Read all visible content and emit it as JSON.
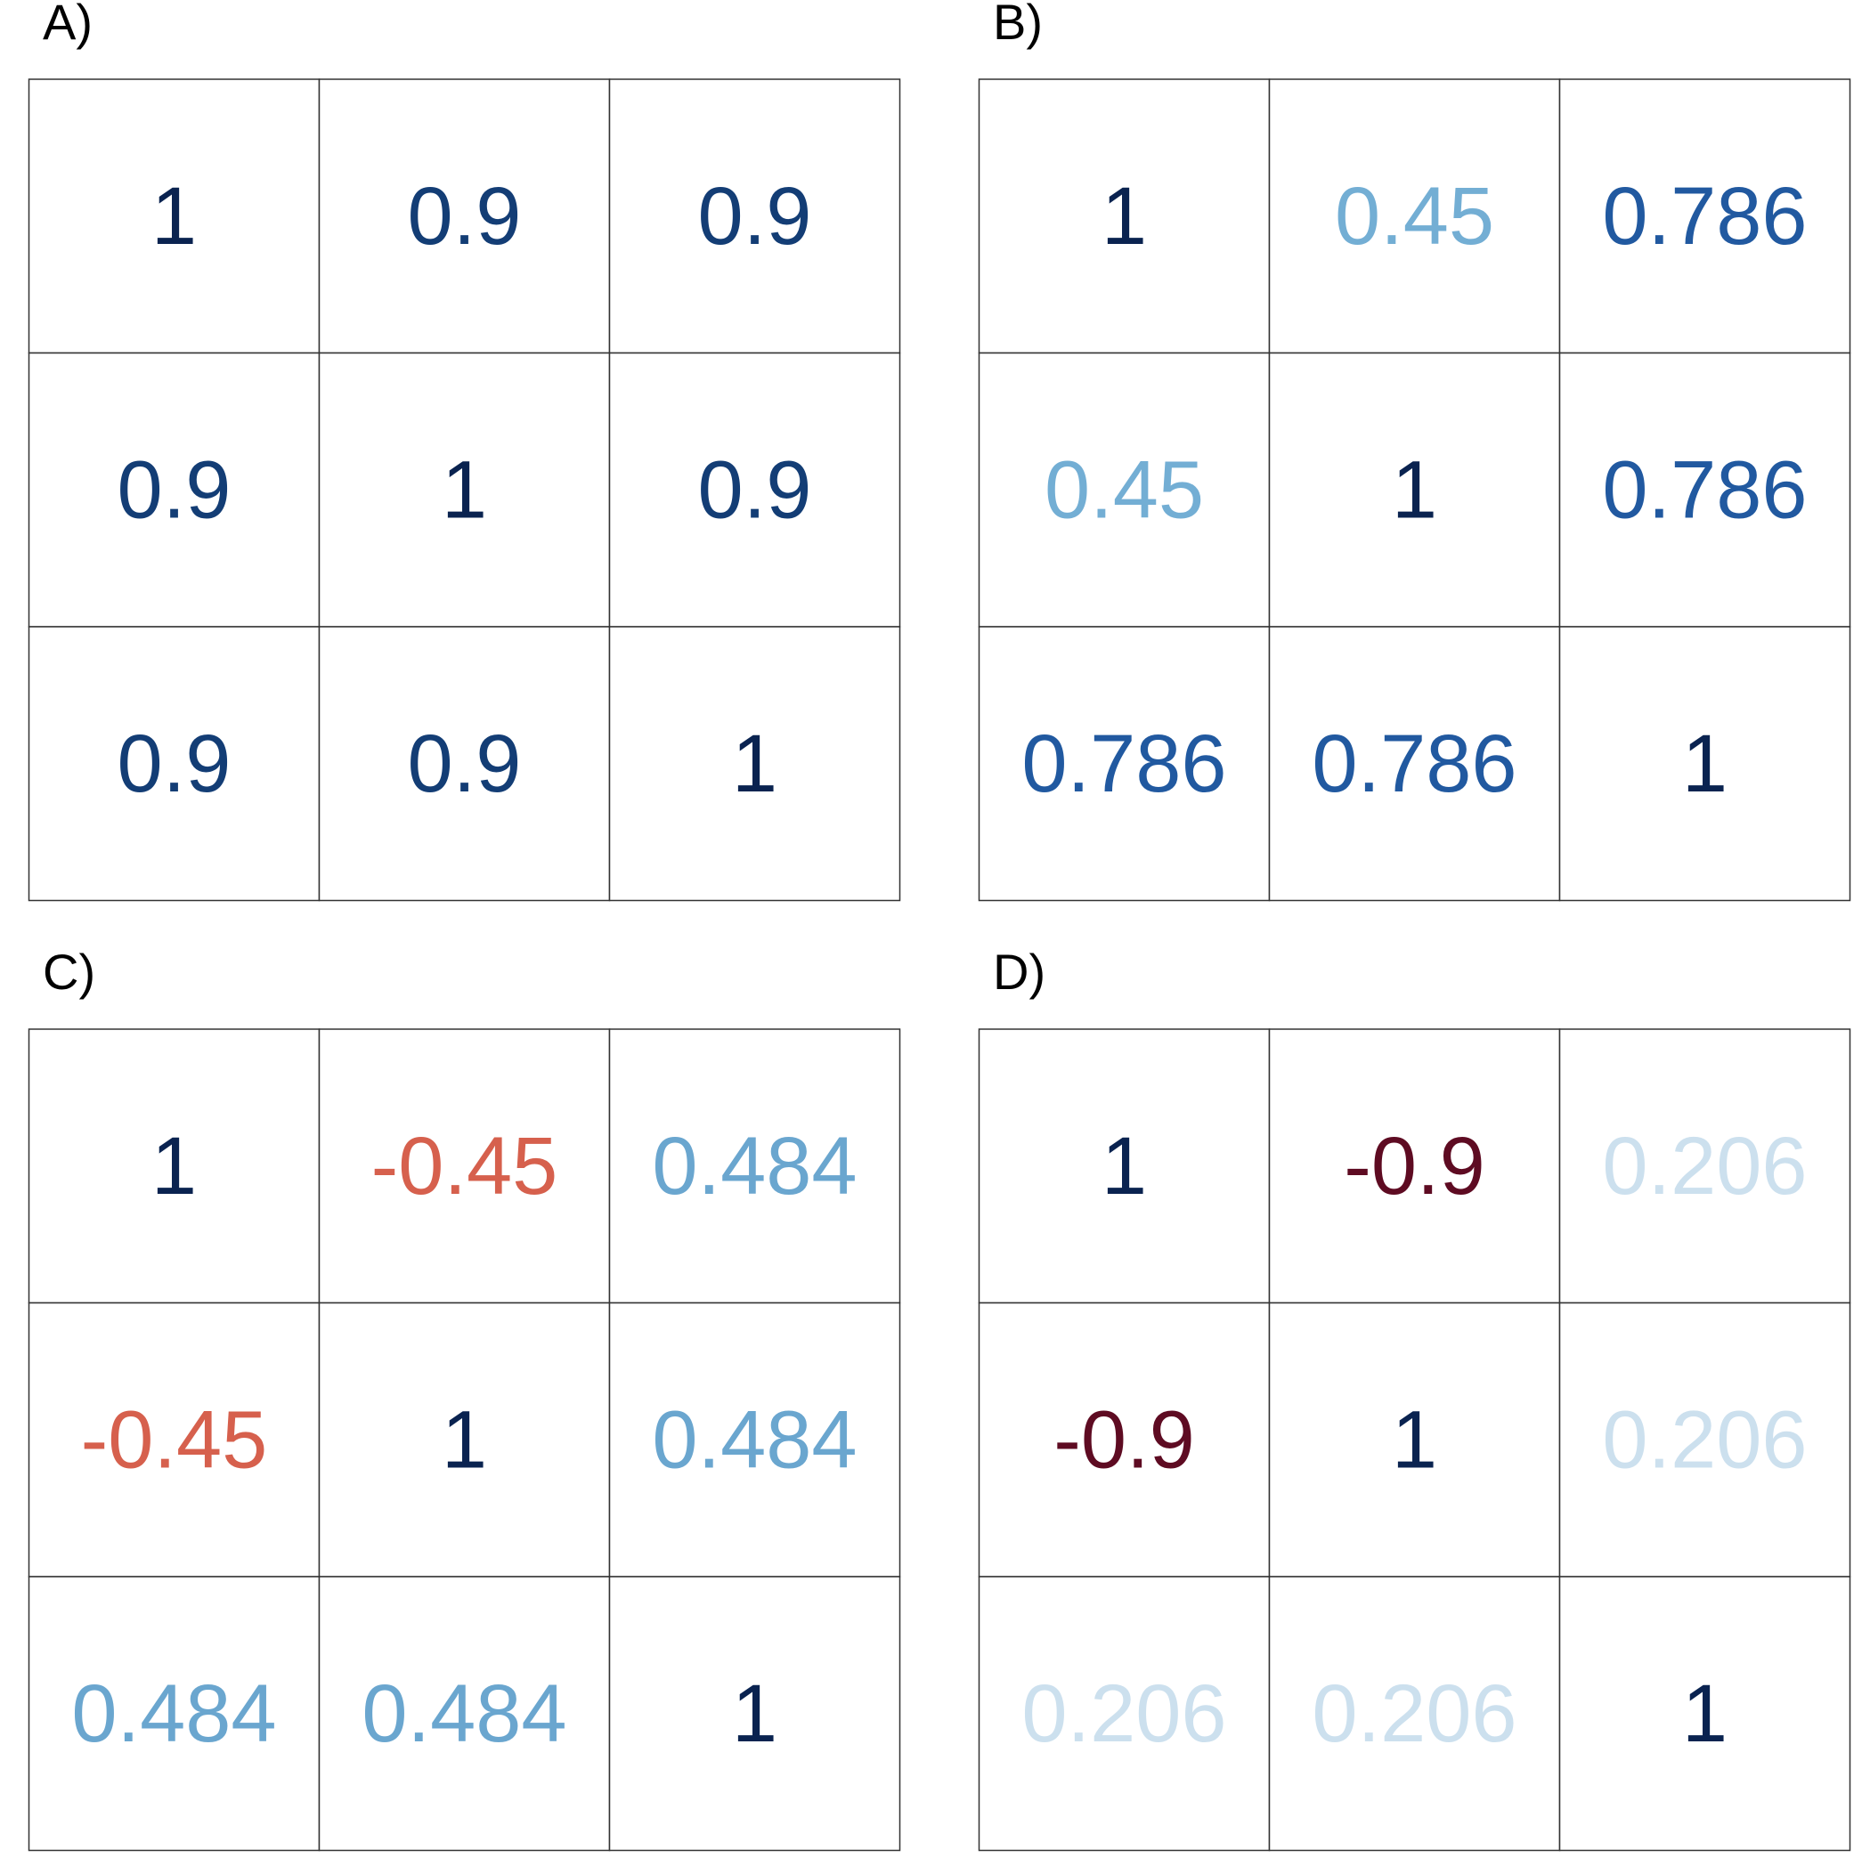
{
  "chart_data": [
    {
      "type": "table",
      "panel_label": "A)",
      "matrix": [
        [
          1,
          0.9,
          0.9
        ],
        [
          0.9,
          1,
          0.9
        ],
        [
          0.9,
          0.9,
          1
        ]
      ],
      "cells": [
        [
          "1",
          "0.9",
          "0.9"
        ],
        [
          "0.9",
          "1",
          "0.9"
        ],
        [
          "0.9",
          "0.9",
          "1"
        ]
      ]
    },
    {
      "type": "table",
      "panel_label": "B)",
      "matrix": [
        [
          1,
          0.45,
          0.786
        ],
        [
          0.45,
          1,
          0.786
        ],
        [
          0.786,
          0.786,
          1
        ]
      ],
      "cells": [
        [
          "1",
          "0.45",
          "0.786"
        ],
        [
          "0.45",
          "1",
          "0.786"
        ],
        [
          "0.786",
          "0.786",
          "1"
        ]
      ]
    },
    {
      "type": "table",
      "panel_label": "C)",
      "matrix": [
        [
          1,
          -0.45,
          0.484
        ],
        [
          -0.45,
          1,
          0.484
        ],
        [
          0.484,
          0.484,
          1
        ]
      ],
      "cells": [
        [
          "1",
          "-0.45",
          "0.484"
        ],
        [
          "-0.45",
          "1",
          "0.484"
        ],
        [
          "0.484",
          "0.484",
          "1"
        ]
      ]
    },
    {
      "type": "table",
      "panel_label": "D)",
      "matrix": [
        [
          1,
          -0.9,
          0.206
        ],
        [
          -0.9,
          1,
          0.206
        ],
        [
          0.206,
          0.206,
          1
        ]
      ],
      "cells": [
        [
          "1",
          "-0.9",
          "0.206"
        ],
        [
          "-0.9",
          "1",
          "0.206"
        ],
        [
          "0.206",
          "0.206",
          "1"
        ]
      ]
    }
  ],
  "colors": {
    "value_1": "#0a2350",
    "value_0_9": "#133d75",
    "value_0_786": "#2159a0",
    "value_0_484": "#6aa6cf",
    "value_0_45": "#73aed4",
    "value_0_206": "#cce0ee",
    "value_neg_0_45": "#d6604d",
    "value_neg_0_9": "#5e0b22",
    "grid_line": "#333333",
    "panel_label": "#000000"
  }
}
